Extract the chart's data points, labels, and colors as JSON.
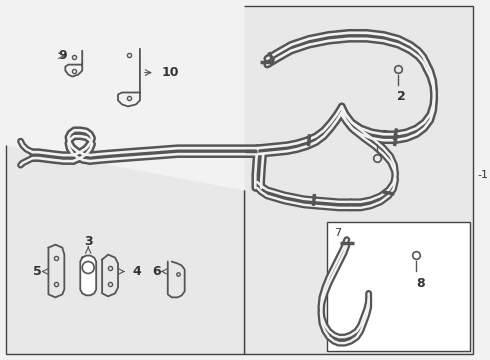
{
  "bg_color": "#f2f2f2",
  "line_color": "#555555",
  "box_color": "#e8e8e8",
  "fig_width": 4.9,
  "fig_height": 3.6,
  "dpi": 100
}
